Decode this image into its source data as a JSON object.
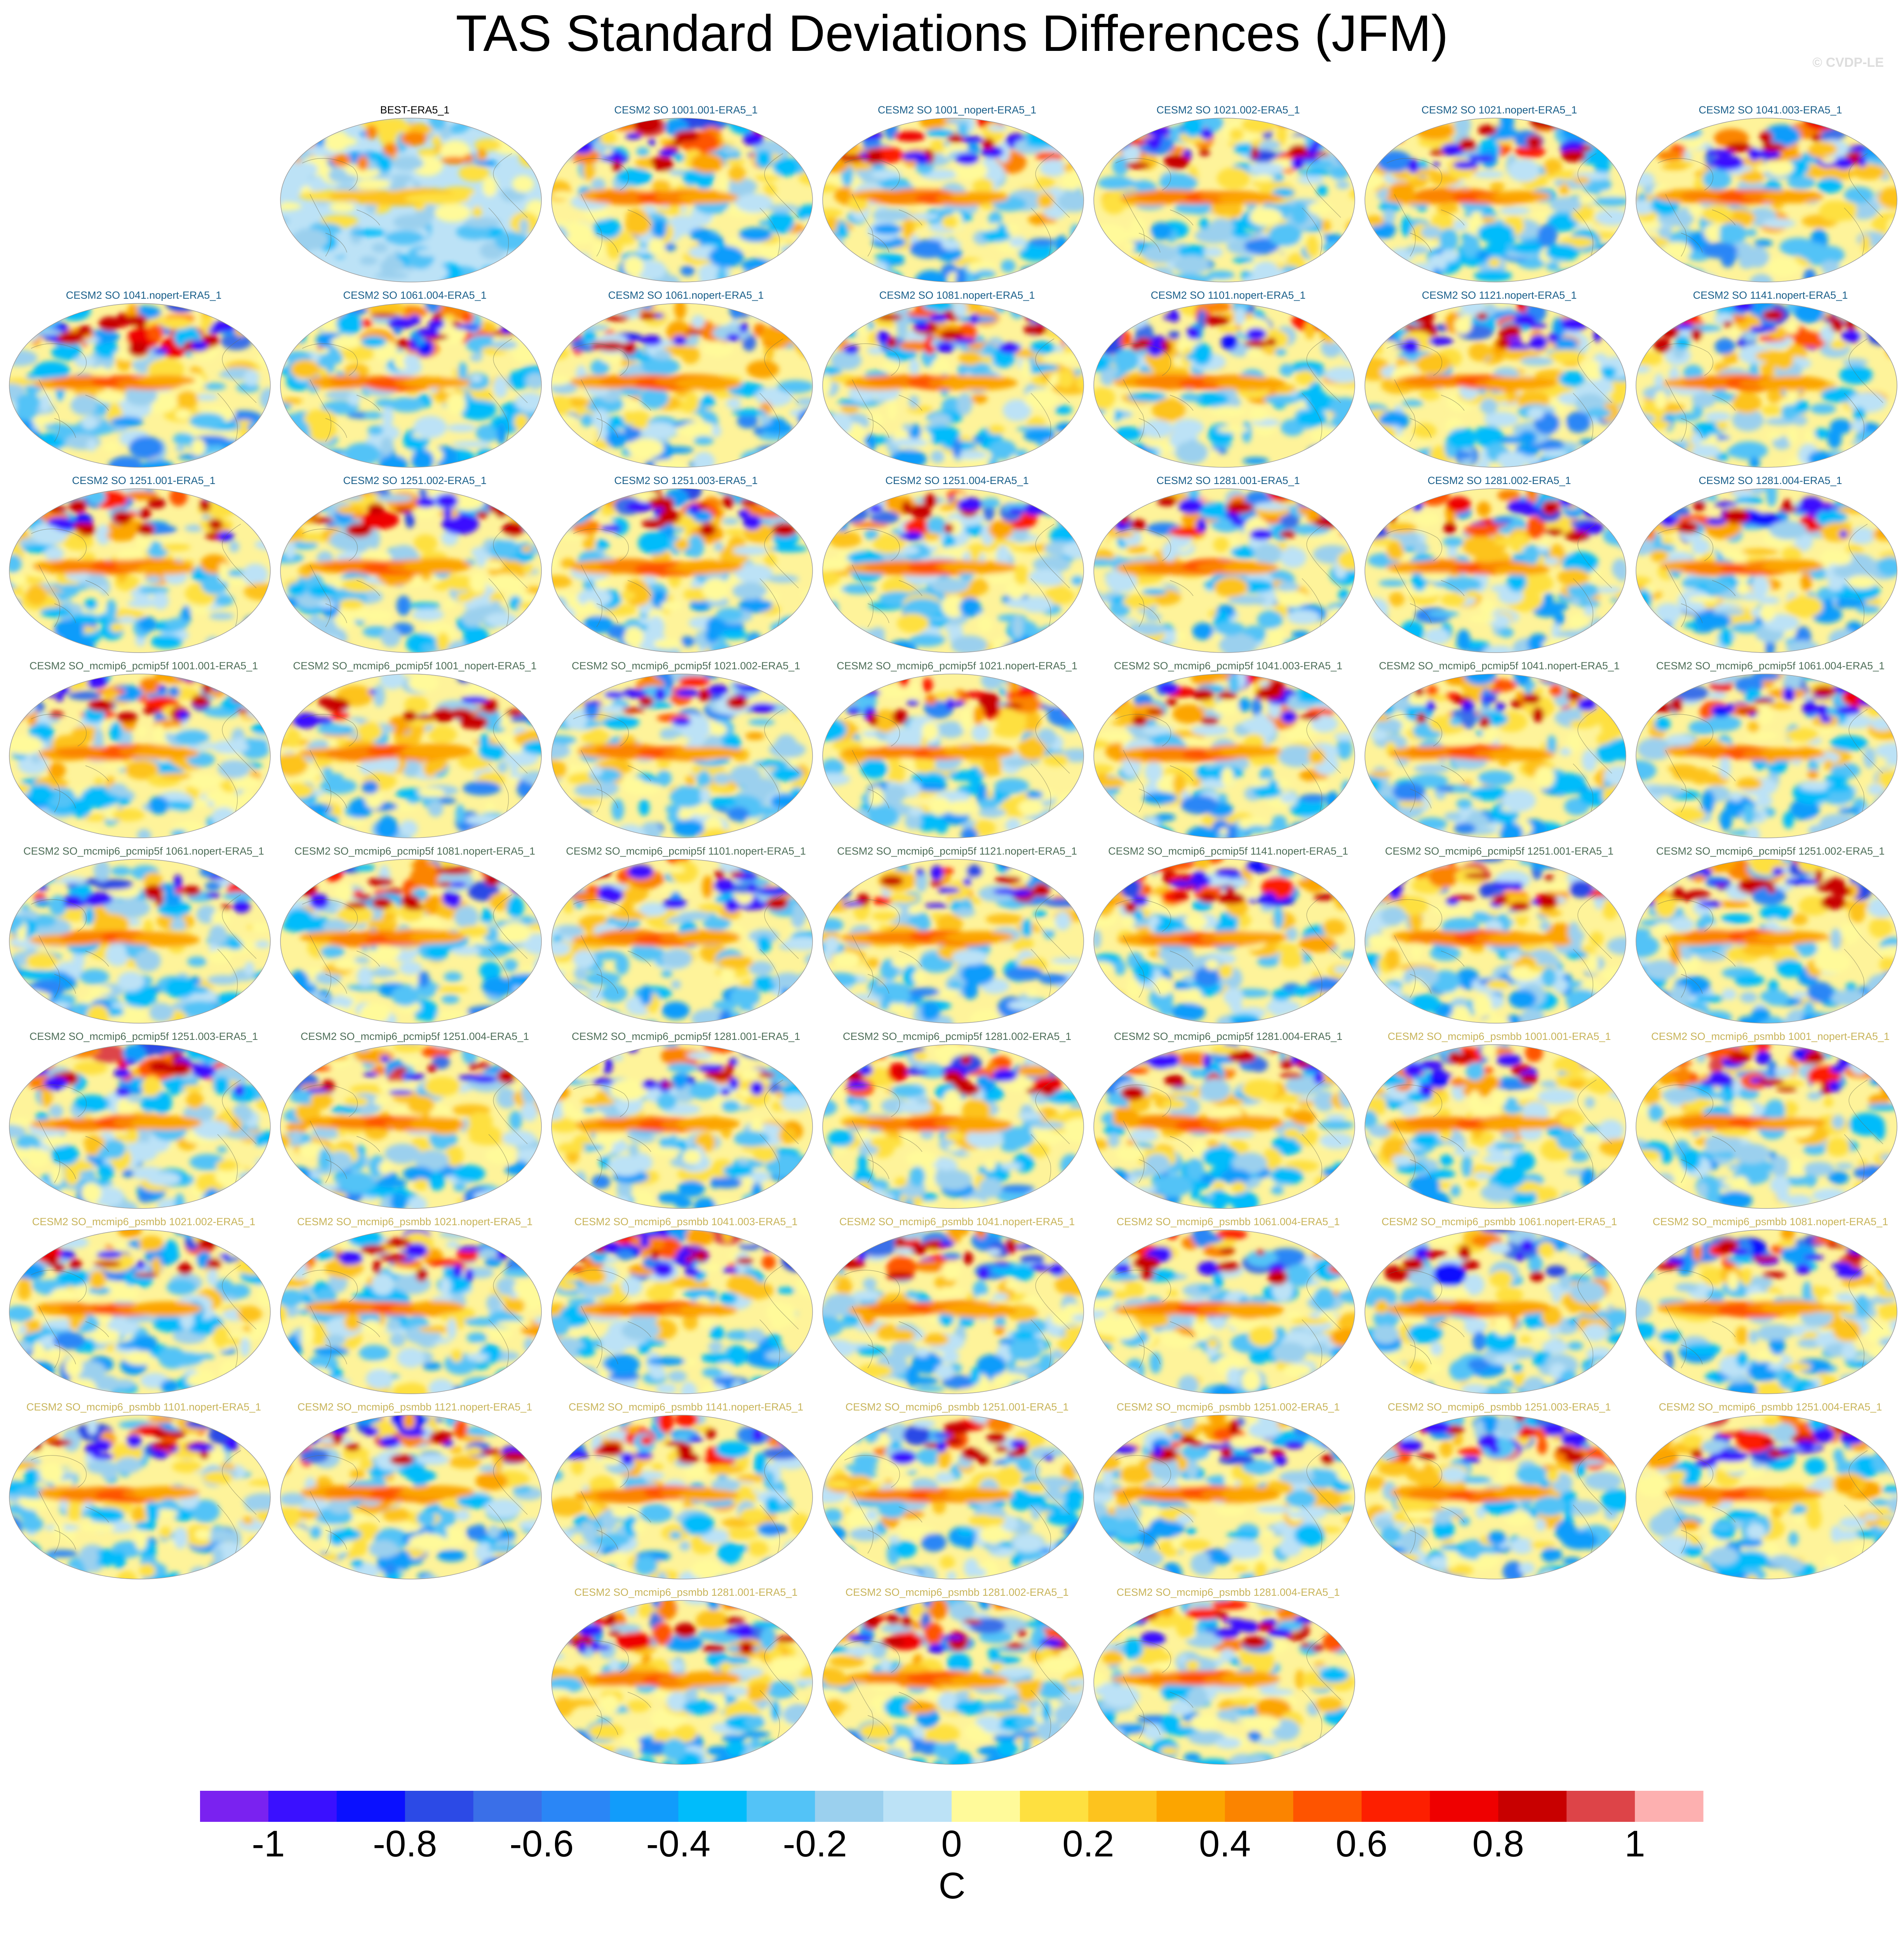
{
  "title": "TAS Standard Deviations Differences (JFM)",
  "credit": "© CVDP-LE",
  "colors": {
    "obs_title": "#000000",
    "so_title": "#1a5f8a",
    "pcmip5f_title": "#4e6e58",
    "psmbb_title": "#c8b45a"
  },
  "panels": [
    {
      "label": "BEST-ERA5_1",
      "group": "obs"
    },
    {
      "label": "CESM2 SO 1001.001-ERA5_1",
      "group": "so"
    },
    {
      "label": "CESM2 SO 1001_nopert-ERA5_1",
      "group": "so"
    },
    {
      "label": "CESM2 SO 1021.002-ERA5_1",
      "group": "so"
    },
    {
      "label": "CESM2 SO 1021.nopert-ERA5_1",
      "group": "so"
    },
    {
      "label": "CESM2 SO 1041.003-ERA5_1",
      "group": "so"
    },
    {
      "label": "CESM2 SO 1041.nopert-ERA5_1",
      "group": "so"
    },
    {
      "label": "CESM2 SO 1061.004-ERA5_1",
      "group": "so"
    },
    {
      "label": "CESM2 SO 1061.nopert-ERA5_1",
      "group": "so"
    },
    {
      "label": "CESM2 SO 1081.nopert-ERA5_1",
      "group": "so"
    },
    {
      "label": "CESM2 SO 1101.nopert-ERA5_1",
      "group": "so"
    },
    {
      "label": "CESM2 SO 1121.nopert-ERA5_1",
      "group": "so"
    },
    {
      "label": "CESM2 SO 1141.nopert-ERA5_1",
      "group": "so"
    },
    {
      "label": "CESM2 SO 1251.001-ERA5_1",
      "group": "so"
    },
    {
      "label": "CESM2 SO 1251.002-ERA5_1",
      "group": "so"
    },
    {
      "label": "CESM2 SO 1251.003-ERA5_1",
      "group": "so"
    },
    {
      "label": "CESM2 SO 1251.004-ERA5_1",
      "group": "so"
    },
    {
      "label": "CESM2 SO 1281.001-ERA5_1",
      "group": "so"
    },
    {
      "label": "CESM2 SO 1281.002-ERA5_1",
      "group": "so"
    },
    {
      "label": "CESM2 SO 1281.004-ERA5_1",
      "group": "so"
    },
    {
      "label": "CESM2 SO_mcmip6_pcmip5f 1001.001-ERA5_1",
      "group": "pcmip5f"
    },
    {
      "label": "CESM2 SO_mcmip6_pcmip5f 1001_nopert-ERA5_1",
      "group": "pcmip5f"
    },
    {
      "label": "CESM2 SO_mcmip6_pcmip5f 1021.002-ERA5_1",
      "group": "pcmip5f"
    },
    {
      "label": "CESM2 SO_mcmip6_pcmip5f 1021.nopert-ERA5_1",
      "group": "pcmip5f"
    },
    {
      "label": "CESM2 SO_mcmip6_pcmip5f 1041.003-ERA5_1",
      "group": "pcmip5f"
    },
    {
      "label": "CESM2 SO_mcmip6_pcmip5f 1041.nopert-ERA5_1",
      "group": "pcmip5f"
    },
    {
      "label": "CESM2 SO_mcmip6_pcmip5f 1061.004-ERA5_1",
      "group": "pcmip5f"
    },
    {
      "label": "CESM2 SO_mcmip6_pcmip5f 1061.nopert-ERA5_1",
      "group": "pcmip5f"
    },
    {
      "label": "CESM2 SO_mcmip6_pcmip5f 1081.nopert-ERA5_1",
      "group": "pcmip5f"
    },
    {
      "label": "CESM2 SO_mcmip6_pcmip5f 1101.nopert-ERA5_1",
      "group": "pcmip5f"
    },
    {
      "label": "CESM2 SO_mcmip6_pcmip5f 1121.nopert-ERA5_1",
      "group": "pcmip5f"
    },
    {
      "label": "CESM2 SO_mcmip6_pcmip5f 1141.nopert-ERA5_1",
      "group": "pcmip5f"
    },
    {
      "label": "CESM2 SO_mcmip6_pcmip5f 1251.001-ERA5_1",
      "group": "pcmip5f"
    },
    {
      "label": "CESM2 SO_mcmip6_pcmip5f 1251.002-ERA5_1",
      "group": "pcmip5f"
    },
    {
      "label": "CESM2 SO_mcmip6_pcmip5f 1251.003-ERA5_1",
      "group": "pcmip5f"
    },
    {
      "label": "CESM2 SO_mcmip6_pcmip5f 1251.004-ERA5_1",
      "group": "pcmip5f"
    },
    {
      "label": "CESM2 SO_mcmip6_pcmip5f 1281.001-ERA5_1",
      "group": "pcmip5f"
    },
    {
      "label": "CESM2 SO_mcmip6_pcmip5f 1281.002-ERA5_1",
      "group": "pcmip5f"
    },
    {
      "label": "CESM2 SO_mcmip6_pcmip5f 1281.004-ERA5_1",
      "group": "pcmip5f"
    },
    {
      "label": "CESM2 SO_mcmip6_psmbb 1001.001-ERA5_1",
      "group": "psmbb"
    },
    {
      "label": "CESM2 SO_mcmip6_psmbb 1001_nopert-ERA5_1",
      "group": "psmbb"
    },
    {
      "label": "CESM2 SO_mcmip6_psmbb 1021.002-ERA5_1",
      "group": "psmbb"
    },
    {
      "label": "CESM2 SO_mcmip6_psmbb 1021.nopert-ERA5_1",
      "group": "psmbb"
    },
    {
      "label": "CESM2 SO_mcmip6_psmbb 1041.003-ERA5_1",
      "group": "psmbb"
    },
    {
      "label": "CESM2 SO_mcmip6_psmbb 1041.nopert-ERA5_1",
      "group": "psmbb"
    },
    {
      "label": "CESM2 SO_mcmip6_psmbb 1061.004-ERA5_1",
      "group": "psmbb"
    },
    {
      "label": "CESM2 SO_mcmip6_psmbb 1061.nopert-ERA5_1",
      "group": "psmbb"
    },
    {
      "label": "CESM2 SO_mcmip6_psmbb 1081.nopert-ERA5_1",
      "group": "psmbb"
    },
    {
      "label": "CESM2 SO_mcmip6_psmbb 1101.nopert-ERA5_1",
      "group": "psmbb"
    },
    {
      "label": "CESM2 SO_mcmip6_psmbb 1121.nopert-ERA5_1",
      "group": "psmbb"
    },
    {
      "label": "CESM2 SO_mcmip6_psmbb 1141.nopert-ERA5_1",
      "group": "psmbb"
    },
    {
      "label": "CESM2 SO_mcmip6_psmbb 1251.001-ERA5_1",
      "group": "psmbb"
    },
    {
      "label": "CESM2 SO_mcmip6_psmbb 1251.002-ERA5_1",
      "group": "psmbb"
    },
    {
      "label": "CESM2 SO_mcmip6_psmbb 1251.003-ERA5_1",
      "group": "psmbb"
    },
    {
      "label": "CESM2 SO_mcmip6_psmbb 1251.004-ERA5_1",
      "group": "psmbb"
    },
    {
      "label": "CESM2 SO_mcmip6_psmbb 1281.001-ERA5_1",
      "group": "psmbb"
    },
    {
      "label": "CESM2 SO_mcmip6_psmbb 1281.002-ERA5_1",
      "group": "psmbb"
    },
    {
      "label": "CESM2 SO_mcmip6_psmbb 1281.004-ERA5_1",
      "group": "psmbb"
    }
  ],
  "colorbar": {
    "unit": "C",
    "levels": [
      -1.1,
      -1.0,
      -0.9,
      -0.8,
      -0.7,
      -0.6,
      -0.5,
      -0.4,
      -0.3,
      -0.2,
      -0.1,
      0.0,
      0.1,
      0.2,
      0.3,
      0.4,
      0.5,
      0.6,
      0.7,
      0.8,
      0.9,
      1.0,
      1.1
    ],
    "colors": [
      "#7a22f0",
      "#3a10ff",
      "#0a10ff",
      "#2c4ae6",
      "#3a6fe8",
      "#2a86f6",
      "#119cfb",
      "#00bcfb",
      "#53c3f7",
      "#9bd0ee",
      "#bce2f6",
      "#fffa9a",
      "#fee040",
      "#fdc31e",
      "#fca500",
      "#fb8400",
      "#fe5400",
      "#fd1f00",
      "#ef0000",
      "#c80000",
      "#dd4448",
      "#fdb0b0"
    ],
    "tick_labels": [
      "-1",
      "-0.8",
      "-0.6",
      "-0.4",
      "-0.2",
      "0",
      "0.2",
      "0.4",
      "0.6",
      "0.8",
      "1"
    ],
    "tick_values": [
      -1.0,
      -0.8,
      -0.6,
      -0.4,
      -0.2,
      0.0,
      0.2,
      0.4,
      0.6,
      0.8,
      1.0
    ]
  }
}
